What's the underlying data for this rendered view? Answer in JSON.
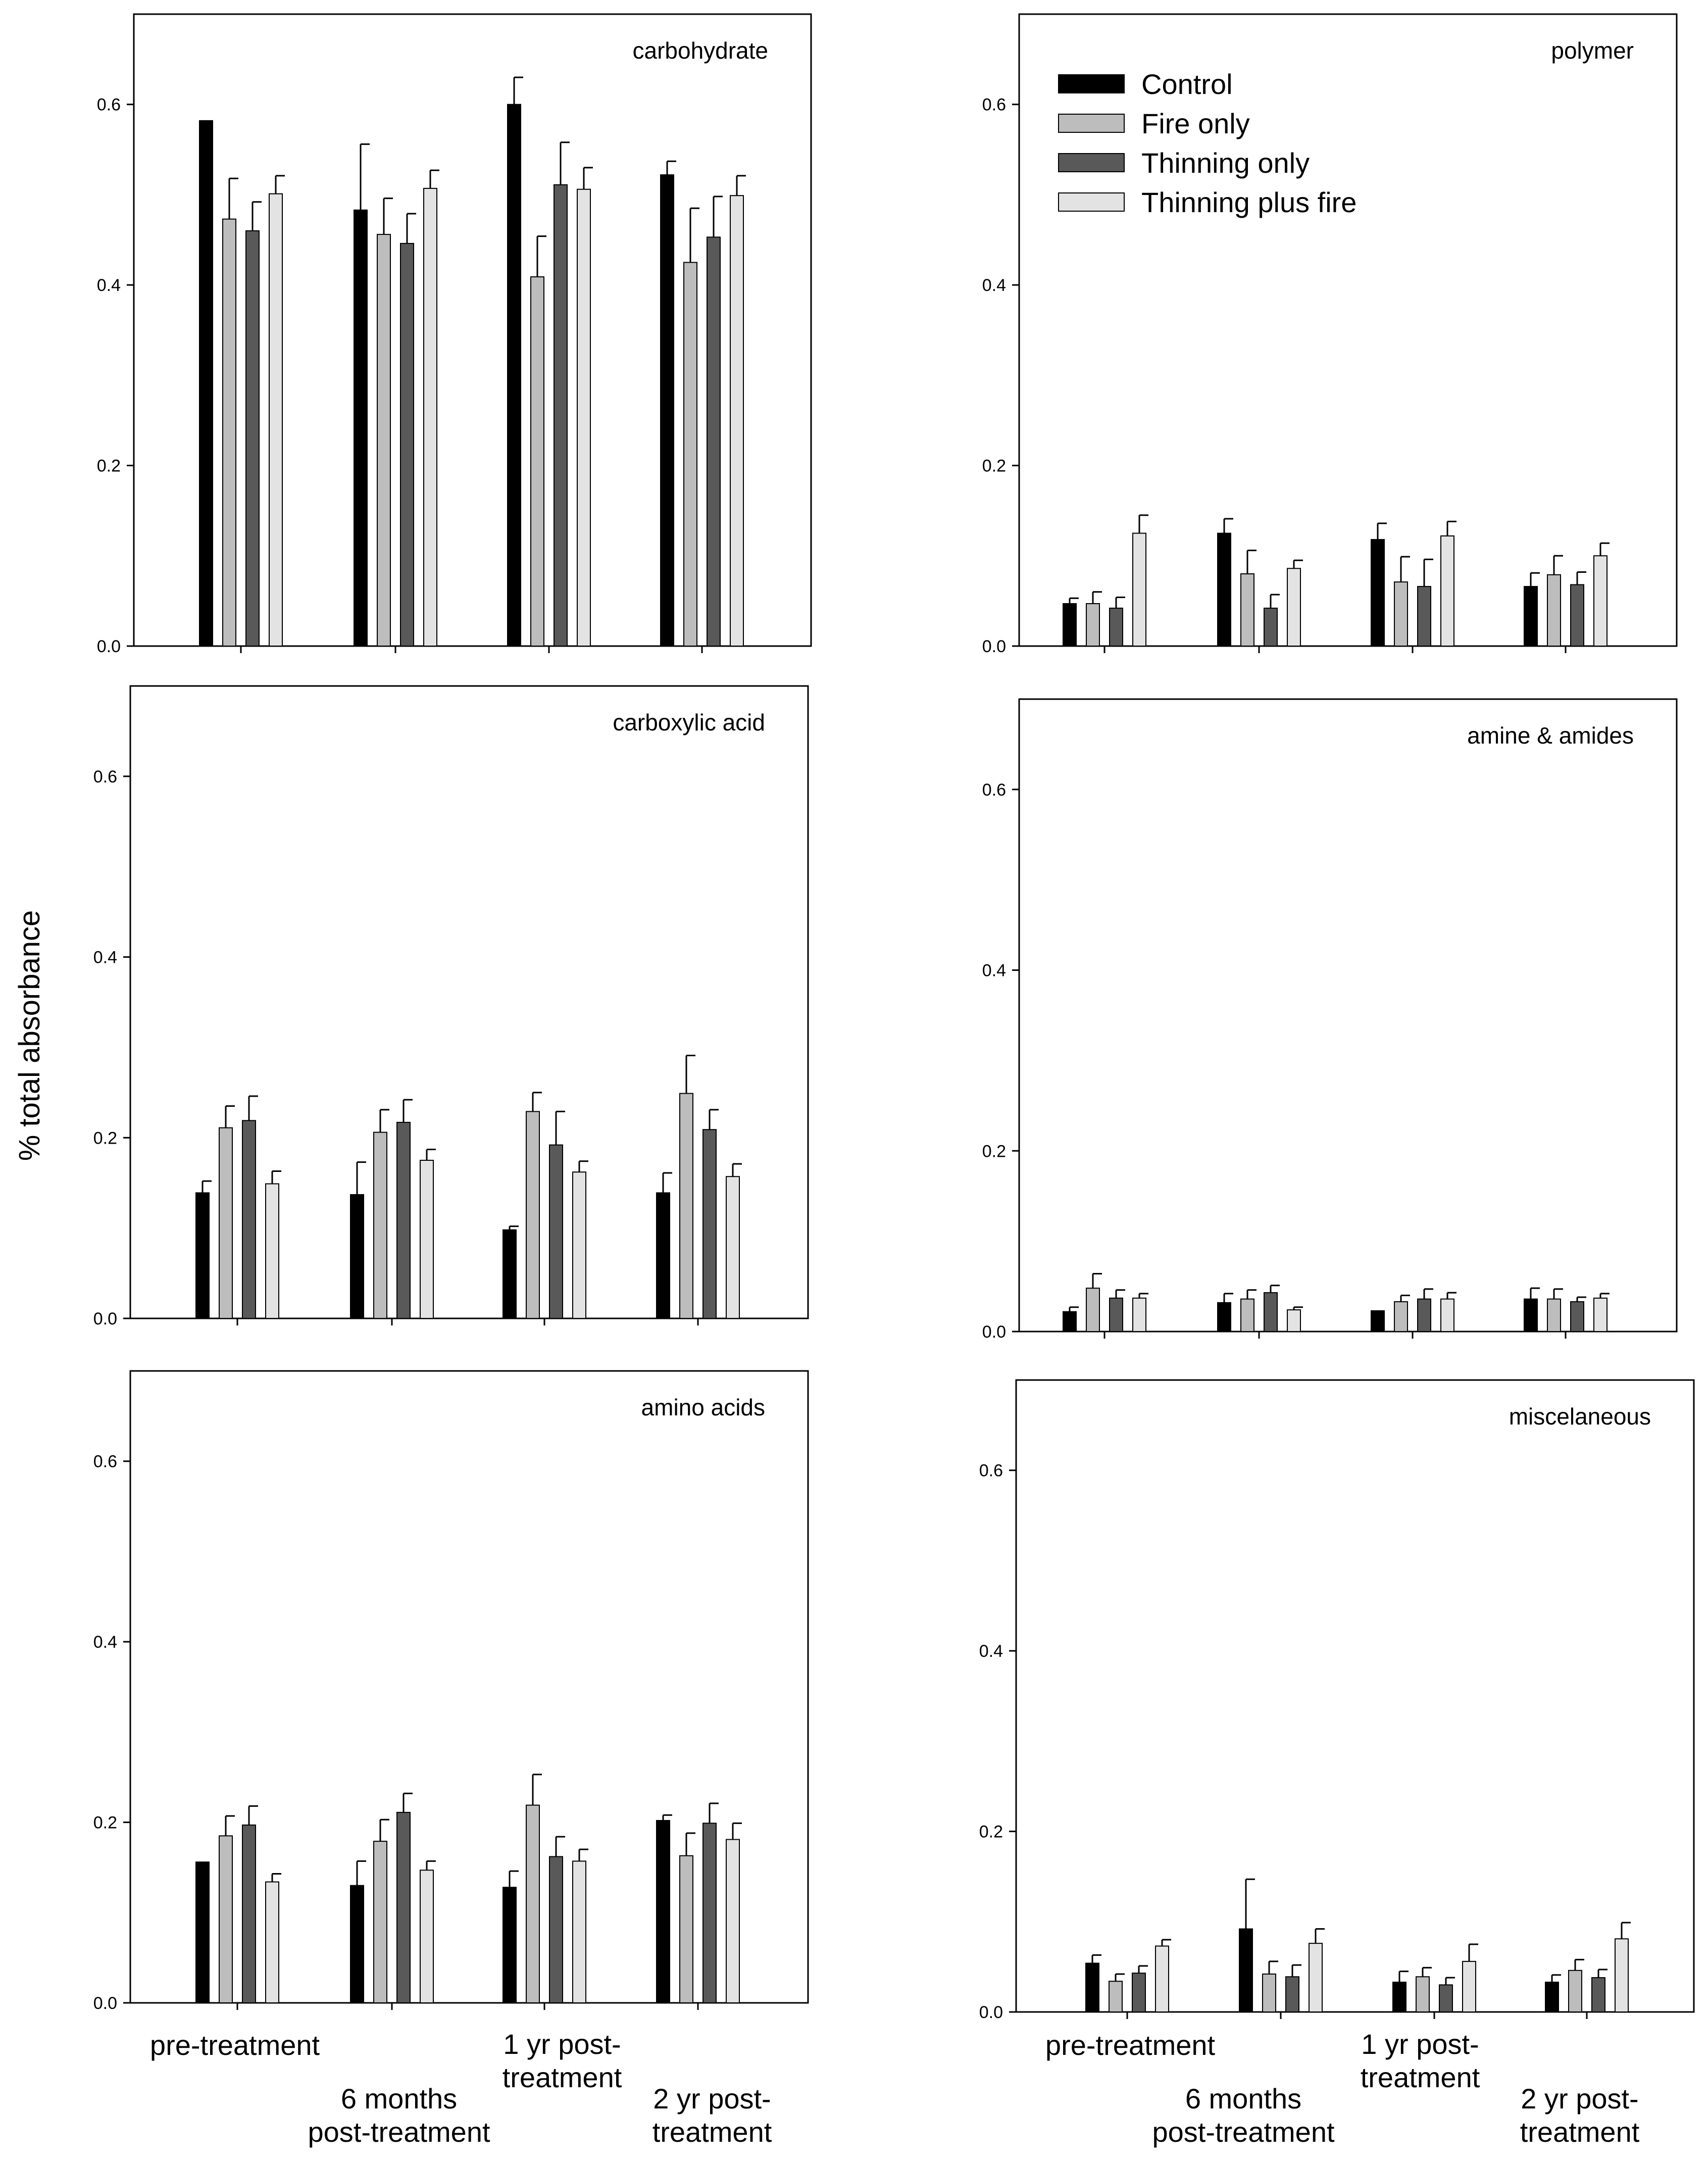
{
  "figure": {
    "ylabel": "% total absorbance"
  },
  "category_labels": [
    [
      "pre-treatment"
    ],
    [
      "6 months",
      "post-treatment"
    ],
    [
      "1 yr post-",
      "treatment"
    ],
    [
      "2 yr post-",
      "treatment"
    ]
  ],
  "legend": {
    "labels": [
      "Control",
      "Fire only",
      "Thinning only",
      "Thinning plus fire"
    ]
  },
  "colors": {
    "Control": "#000000",
    "Fire only": "#bdbdbd",
    "Thinning only": "#595959",
    "Thinning plus fire": "#e3e3e3",
    "axis": "#000000"
  },
  "chart_data": [
    {
      "type": "bar",
      "title": "carbohydrate",
      "categories": [
        "pre-treatment",
        "6 months post-treatment",
        "1 yr post-treatment",
        "2 yr post-treatment"
      ],
      "ylim": [
        0,
        0.7
      ],
      "yticks": [
        0.0,
        0.2,
        0.4,
        0.6
      ],
      "ytick_labels": [
        "0.0",
        "0.2",
        "0.4",
        "0.6"
      ],
      "series": [
        {
          "name": "Control",
          "values": [
            0.582,
            0.483,
            0.6,
            0.522
          ],
          "errors": [
            0.0,
            0.073,
            0.03,
            0.015
          ]
        },
        {
          "name": "Fire only",
          "values": [
            0.473,
            0.456,
            0.409,
            0.425
          ],
          "errors": [
            0.045,
            0.04,
            0.045,
            0.06
          ]
        },
        {
          "name": "Thinning only",
          "values": [
            0.46,
            0.446,
            0.511,
            0.453
          ],
          "errors": [
            0.032,
            0.033,
            0.047,
            0.045
          ]
        },
        {
          "name": "Thinning plus fire",
          "values": [
            0.501,
            0.507,
            0.506,
            0.499
          ],
          "errors": [
            0.02,
            0.02,
            0.024,
            0.022
          ]
        }
      ]
    },
    {
      "type": "bar",
      "title": "polymer",
      "categories": [
        "pre-treatment",
        "6 months post-treatment",
        "1 yr post-treatment",
        "2 yr post-treatment"
      ],
      "ylim": [
        0,
        0.7
      ],
      "yticks": [
        0.0,
        0.2,
        0.4,
        0.6
      ],
      "ytick_labels": [
        "0.0",
        "0.2",
        "0.4",
        "0.6"
      ],
      "legend_position": "top-left",
      "series": [
        {
          "name": "Control",
          "values": [
            0.047,
            0.125,
            0.118,
            0.066
          ],
          "errors": [
            0.006,
            0.016,
            0.018,
            0.015
          ]
        },
        {
          "name": "Fire only",
          "values": [
            0.047,
            0.08,
            0.071,
            0.079
          ],
          "errors": [
            0.013,
            0.026,
            0.028,
            0.021
          ]
        },
        {
          "name": "Thinning only",
          "values": [
            0.042,
            0.042,
            0.066,
            0.068
          ],
          "errors": [
            0.012,
            0.015,
            0.03,
            0.014
          ]
        },
        {
          "name": "Thinning plus fire",
          "values": [
            0.125,
            0.086,
            0.122,
            0.1
          ],
          "errors": [
            0.02,
            0.009,
            0.016,
            0.014
          ]
        }
      ]
    },
    {
      "type": "bar",
      "title": "carboxylic acid",
      "categories": [
        "pre-treatment",
        "6 months post-treatment",
        "1 yr post-treatment",
        "2 yr post-treatment"
      ],
      "ylim": [
        0,
        0.7
      ],
      "yticks": [
        0.0,
        0.2,
        0.4,
        0.6
      ],
      "ytick_labels": [
        "0.0",
        "0.2",
        "0.4",
        "0.6"
      ],
      "series": [
        {
          "name": "Control",
          "values": [
            0.139,
            0.137,
            0.098,
            0.139
          ],
          "errors": [
            0.013,
            0.036,
            0.004,
            0.022
          ]
        },
        {
          "name": "Fire only",
          "values": [
            0.211,
            0.206,
            0.229,
            0.249
          ],
          "errors": [
            0.024,
            0.025,
            0.021,
            0.042
          ]
        },
        {
          "name": "Thinning only",
          "values": [
            0.219,
            0.217,
            0.192,
            0.209
          ],
          "errors": [
            0.027,
            0.025,
            0.037,
            0.022
          ]
        },
        {
          "name": "Thinning plus fire",
          "values": [
            0.149,
            0.175,
            0.162,
            0.157
          ],
          "errors": [
            0.014,
            0.012,
            0.012,
            0.014
          ]
        }
      ]
    },
    {
      "type": "bar",
      "title": "amine & amides",
      "categories": [
        "pre-treatment",
        "6 months post-treatment",
        "1 yr post-treatment",
        "2 yr post-treatment"
      ],
      "ylim": [
        0,
        0.7
      ],
      "yticks": [
        0.0,
        0.2,
        0.4,
        0.6
      ],
      "ytick_labels": [
        "0.0",
        "0.2",
        "0.4",
        "0.6"
      ],
      "series": [
        {
          "name": "Control",
          "values": [
            0.022,
            0.032,
            0.023,
            0.036
          ],
          "errors": [
            0.005,
            0.01,
            0.0,
            0.012
          ]
        },
        {
          "name": "Fire only",
          "values": [
            0.048,
            0.036,
            0.033,
            0.036
          ],
          "errors": [
            0.016,
            0.01,
            0.007,
            0.011
          ]
        },
        {
          "name": "Thinning only",
          "values": [
            0.037,
            0.043,
            0.036,
            0.033
          ],
          "errors": [
            0.009,
            0.008,
            0.011,
            0.005
          ]
        },
        {
          "name": "Thinning plus fire",
          "values": [
            0.037,
            0.024,
            0.036,
            0.037
          ],
          "errors": [
            0.005,
            0.003,
            0.007,
            0.005
          ]
        }
      ]
    },
    {
      "type": "bar",
      "title": "amino acids",
      "categories": [
        "pre-treatment",
        "6 months post-treatment",
        "1 yr post-treatment",
        "2 yr post-treatment"
      ],
      "ylim": [
        0,
        0.7
      ],
      "yticks": [
        0.0,
        0.2,
        0.4,
        0.6
      ],
      "ytick_labels": [
        "0.0",
        "0.2",
        "0.4",
        "0.6"
      ],
      "series": [
        {
          "name": "Control",
          "values": [
            0.156,
            0.13,
            0.128,
            0.202
          ],
          "errors": [
            0.0,
            0.027,
            0.018,
            0.006
          ]
        },
        {
          "name": "Fire only",
          "values": [
            0.185,
            0.179,
            0.219,
            0.163
          ],
          "errors": [
            0.022,
            0.024,
            0.034,
            0.025
          ]
        },
        {
          "name": "Thinning only",
          "values": [
            0.197,
            0.211,
            0.162,
            0.199
          ],
          "errors": [
            0.021,
            0.021,
            0.022,
            0.022
          ]
        },
        {
          "name": "Thinning plus fire",
          "values": [
            0.134,
            0.147,
            0.157,
            0.181
          ],
          "errors": [
            0.009,
            0.01,
            0.013,
            0.018
          ]
        }
      ]
    },
    {
      "type": "bar",
      "title": "miscelaneous",
      "categories": [
        "pre-treatment",
        "6 months post-treatment",
        "1 yr post-treatment",
        "2 yr post-treatment"
      ],
      "ylim": [
        0,
        0.7
      ],
      "yticks": [
        0.0,
        0.2,
        0.4,
        0.6
      ],
      "ytick_labels": [
        "0.0",
        "0.2",
        "0.4",
        "0.6"
      ],
      "series": [
        {
          "name": "Control",
          "values": [
            0.054,
            0.092,
            0.033,
            0.033
          ],
          "errors": [
            0.009,
            0.055,
            0.012,
            0.008
          ]
        },
        {
          "name": "Fire only",
          "values": [
            0.034,
            0.042,
            0.039,
            0.046
          ],
          "errors": [
            0.008,
            0.014,
            0.01,
            0.012
          ]
        },
        {
          "name": "Thinning only",
          "values": [
            0.043,
            0.039,
            0.03,
            0.038
          ],
          "errors": [
            0.008,
            0.013,
            0.008,
            0.009
          ]
        },
        {
          "name": "Thinning plus fire",
          "values": [
            0.073,
            0.076,
            0.056,
            0.081
          ],
          "errors": [
            0.007,
            0.016,
            0.019,
            0.018
          ]
        }
      ]
    }
  ]
}
